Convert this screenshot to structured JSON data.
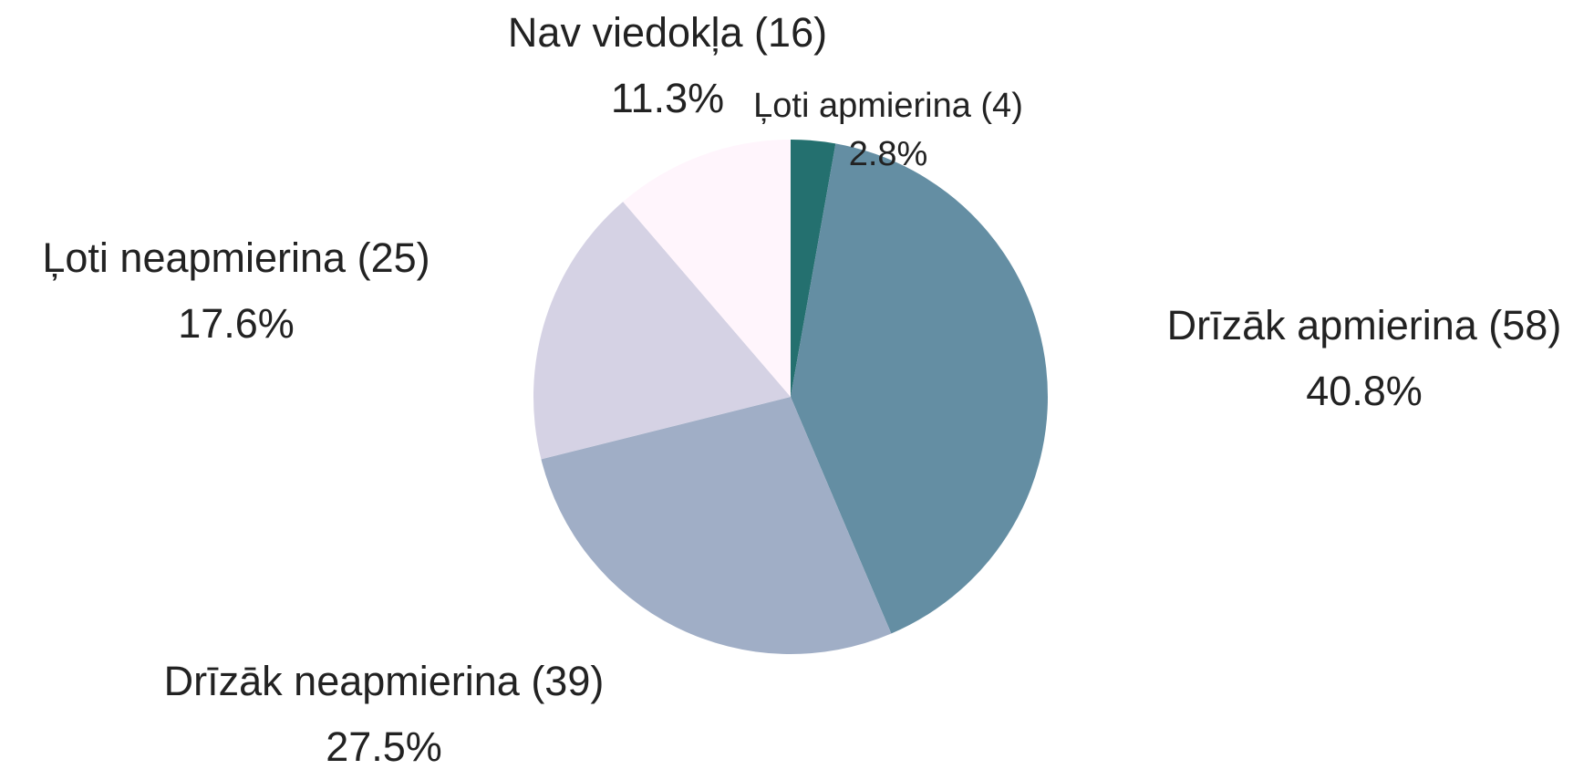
{
  "chart_data": {
    "type": "pie",
    "categories": [
      "Ļoti apmierina (4)",
      "Drīzāk apmierina (58)",
      "Drīzāk neapmierina (39)",
      "Ļoti neapmierina (25)",
      "Nav viedokļa (16)"
    ],
    "values": [
      2.8,
      40.8,
      27.5,
      17.6,
      11.3
    ],
    "value_labels": [
      "2.8%",
      "40.8%",
      "27.5%",
      "17.6%",
      "11.3%"
    ],
    "colors": [
      "#24706f",
      "#648ea3",
      "#a0aec6",
      "#d5d2e4",
      "#fff5fc"
    ]
  }
}
